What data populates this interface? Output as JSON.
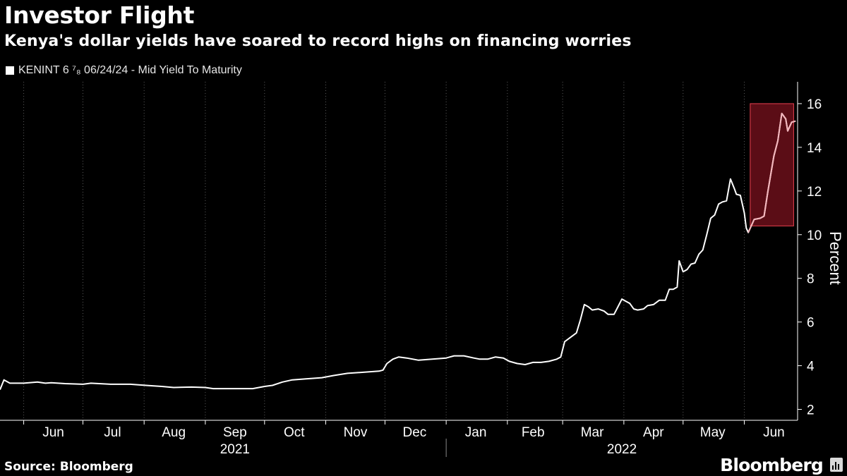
{
  "header": {
    "title": "Investor Flight",
    "subtitle": "Kenya's dollar yields have soared to record highs on financing worries",
    "legend_label": "KENINT 6 ⁷₈ 06/24/24 - Mid Yield To Maturity"
  },
  "footer": {
    "source": "Source: Bloomberg",
    "brand": "Bloomberg"
  },
  "colors": {
    "background": "#000000",
    "line": "#ffffff",
    "highlight_fill": "#6b0f1a",
    "highlight_stroke": "#e8414f",
    "highlight_line": "#f4b6bc",
    "grid": "#5a5a5a"
  },
  "chart_data": {
    "type": "line",
    "title": "Investor Flight",
    "subtitle": "Kenya's dollar yields have soared to record highs on financing worries",
    "ylabel": "Percent",
    "xlabel": "",
    "ylim": [
      1.5,
      17
    ],
    "yticks": [
      2,
      4,
      6,
      8,
      10,
      12,
      14,
      16
    ],
    "y_axis_side": "right",
    "grid": "vertical dotted at month boundaries",
    "x_range": [
      "2021-05-20",
      "2022-06-28"
    ],
    "month_labels": [
      {
        "label": "Jun",
        "date": "2021-06-16"
      },
      {
        "label": "Jul",
        "date": "2021-07-16"
      },
      {
        "label": "Aug",
        "date": "2021-08-16"
      },
      {
        "label": "Sep",
        "date": "2021-09-16"
      },
      {
        "label": "Oct",
        "date": "2021-10-16"
      },
      {
        "label": "Nov",
        "date": "2021-11-16"
      },
      {
        "label": "Dec",
        "date": "2021-12-16"
      },
      {
        "label": "Jan",
        "date": "2022-01-16"
      },
      {
        "label": "Feb",
        "date": "2022-02-14"
      },
      {
        "label": "Mar",
        "date": "2022-03-16"
      },
      {
        "label": "Apr",
        "date": "2022-04-16"
      },
      {
        "label": "May",
        "date": "2022-05-16"
      },
      {
        "label": "Jun",
        "date": "2022-06-16"
      }
    ],
    "month_boundaries": [
      "2021-06-01",
      "2021-07-01",
      "2021-08-01",
      "2021-09-01",
      "2021-10-01",
      "2021-11-01",
      "2021-12-01",
      "2022-01-01",
      "2022-02-01",
      "2022-03-01",
      "2022-04-01",
      "2022-05-01",
      "2022-06-01"
    ],
    "year_labels": [
      {
        "label": "2021",
        "date": "2021-09-16"
      },
      {
        "label": "2022",
        "date": "2022-03-31"
      }
    ],
    "year_divider": "2022-01-01",
    "highlight": {
      "x": [
        "2022-06-04",
        "2022-06-26"
      ],
      "y": [
        10.4,
        16
      ]
    },
    "series": [
      {
        "name": "KENINT 6 ⁷₈ 06/24/24 - Mid Yield To Maturity",
        "points": [
          [
            "2021-05-20",
            2.9
          ],
          [
            "2021-05-22",
            3.35
          ],
          [
            "2021-05-25",
            3.2
          ],
          [
            "2021-06-01",
            3.2
          ],
          [
            "2021-06-08",
            3.25
          ],
          [
            "2021-06-12",
            3.2
          ],
          [
            "2021-06-15",
            3.22
          ],
          [
            "2021-06-22",
            3.18
          ],
          [
            "2021-07-01",
            3.15
          ],
          [
            "2021-07-05",
            3.2
          ],
          [
            "2021-07-15",
            3.15
          ],
          [
            "2021-07-25",
            3.15
          ],
          [
            "2021-08-02",
            3.1
          ],
          [
            "2021-08-10",
            3.05
          ],
          [
            "2021-08-16",
            3.0
          ],
          [
            "2021-08-25",
            3.02
          ],
          [
            "2021-09-01",
            3.0
          ],
          [
            "2021-09-05",
            2.95
          ],
          [
            "2021-09-15",
            2.95
          ],
          [
            "2021-09-25",
            2.95
          ],
          [
            "2021-10-01",
            3.05
          ],
          [
            "2021-10-05",
            3.1
          ],
          [
            "2021-10-10",
            3.25
          ],
          [
            "2021-10-15",
            3.35
          ],
          [
            "2021-10-22",
            3.4
          ],
          [
            "2021-10-30",
            3.45
          ],
          [
            "2021-11-05",
            3.55
          ],
          [
            "2021-11-12",
            3.65
          ],
          [
            "2021-11-20",
            3.7
          ],
          [
            "2021-11-28",
            3.75
          ],
          [
            "2021-11-30",
            3.8
          ],
          [
            "2021-12-02",
            4.1
          ],
          [
            "2021-12-05",
            4.3
          ],
          [
            "2021-12-08",
            4.4
          ],
          [
            "2021-12-12",
            4.35
          ],
          [
            "2021-12-18",
            4.25
          ],
          [
            "2021-12-25",
            4.3
          ],
          [
            "2022-01-01",
            4.35
          ],
          [
            "2022-01-05",
            4.45
          ],
          [
            "2022-01-10",
            4.45
          ],
          [
            "2022-01-15",
            4.35
          ],
          [
            "2022-01-18",
            4.3
          ],
          [
            "2022-01-22",
            4.3
          ],
          [
            "2022-01-26",
            4.4
          ],
          [
            "2022-01-30",
            4.35
          ],
          [
            "2022-02-02",
            4.2
          ],
          [
            "2022-02-06",
            4.1
          ],
          [
            "2022-02-10",
            4.05
          ],
          [
            "2022-02-14",
            4.15
          ],
          [
            "2022-02-18",
            4.15
          ],
          [
            "2022-02-22",
            4.2
          ],
          [
            "2022-02-26",
            4.3
          ],
          [
            "2022-02-28",
            4.4
          ],
          [
            "2022-03-02",
            5.1
          ],
          [
            "2022-03-05",
            5.3
          ],
          [
            "2022-03-08",
            5.5
          ],
          [
            "2022-03-10",
            6.1
          ],
          [
            "2022-03-12",
            6.8
          ],
          [
            "2022-03-14",
            6.7
          ],
          [
            "2022-03-16",
            6.55
          ],
          [
            "2022-03-19",
            6.6
          ],
          [
            "2022-03-22",
            6.5
          ],
          [
            "2022-03-24",
            6.35
          ],
          [
            "2022-03-27",
            6.35
          ],
          [
            "2022-03-29",
            6.7
          ],
          [
            "2022-03-31",
            7.05
          ],
          [
            "2022-04-02",
            6.95
          ],
          [
            "2022-04-04",
            6.85
          ],
          [
            "2022-04-06",
            6.6
          ],
          [
            "2022-04-08",
            6.55
          ],
          [
            "2022-04-11",
            6.6
          ],
          [
            "2022-04-13",
            6.75
          ],
          [
            "2022-04-16",
            6.8
          ],
          [
            "2022-04-19",
            7.0
          ],
          [
            "2022-04-22",
            7.0
          ],
          [
            "2022-04-24",
            7.5
          ],
          [
            "2022-04-26",
            7.5
          ],
          [
            "2022-04-28",
            7.6
          ],
          [
            "2022-04-29",
            8.8
          ],
          [
            "2022-05-01",
            8.3
          ],
          [
            "2022-05-03",
            8.4
          ],
          [
            "2022-05-05",
            8.65
          ],
          [
            "2022-05-07",
            8.7
          ],
          [
            "2022-05-09",
            9.1
          ],
          [
            "2022-05-11",
            9.3
          ],
          [
            "2022-05-13",
            10.0
          ],
          [
            "2022-05-15",
            10.75
          ],
          [
            "2022-05-17",
            10.9
          ],
          [
            "2022-05-19",
            11.4
          ],
          [
            "2022-05-21",
            11.5
          ],
          [
            "2022-05-23",
            11.55
          ],
          [
            "2022-05-25",
            12.55
          ],
          [
            "2022-05-27",
            12.1
          ],
          [
            "2022-05-28",
            11.85
          ],
          [
            "2022-05-30",
            11.8
          ],
          [
            "2022-06-01",
            11.0
          ],
          [
            "2022-06-02",
            10.3
          ],
          [
            "2022-06-03",
            10.1
          ],
          [
            "2022-06-05",
            10.5
          ],
          [
            "2022-06-06",
            10.7
          ],
          [
            "2022-06-09",
            10.75
          ],
          [
            "2022-06-11",
            10.85
          ],
          [
            "2022-06-13",
            12.0
          ],
          [
            "2022-06-16",
            13.6
          ],
          [
            "2022-06-18",
            14.3
          ],
          [
            "2022-06-20",
            15.55
          ],
          [
            "2022-06-22",
            15.3
          ],
          [
            "2022-06-23",
            14.75
          ],
          [
            "2022-06-25",
            15.15
          ],
          [
            "2022-06-27",
            15.2
          ]
        ]
      }
    ]
  }
}
